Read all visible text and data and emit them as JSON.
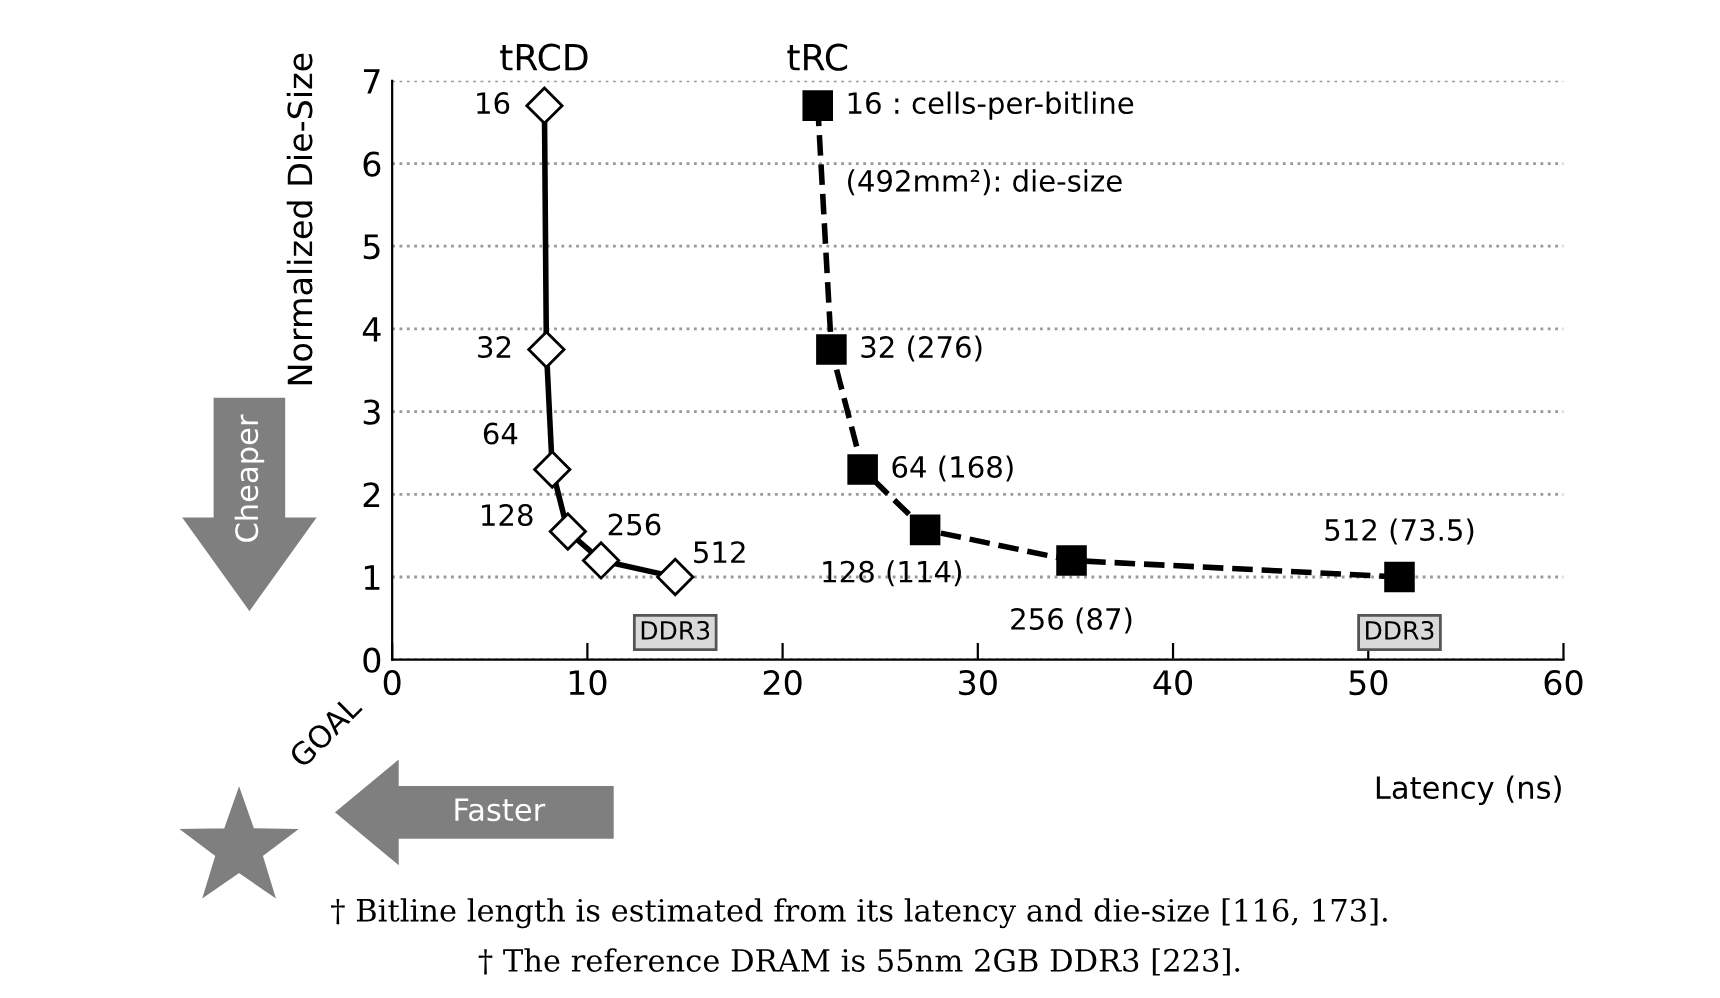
{
  "chart_data": {
    "type": "line",
    "xlabel": "Latency (ns)",
    "ylabel": "Normalized Die-Size",
    "xlim": [
      0,
      60
    ],
    "xticks": [
      0,
      10,
      20,
      30,
      40,
      50,
      60
    ],
    "ylim": [
      0,
      7
    ],
    "yticks": [
      0,
      1,
      2,
      3,
      4,
      5,
      6,
      7
    ],
    "grid": "y",
    "legend": false,
    "series": [
      {
        "name": "tRCD",
        "color": "#000000",
        "x": [
          7.8,
          7.9,
          8.2,
          9.0,
          10.7,
          14.5
        ],
        "values": [
          6.7,
          3.75,
          2.3,
          1.55,
          1.2,
          1.0
        ],
        "marker": "diamond",
        "line_style": "solid"
      },
      {
        "name": "tRC",
        "color": "#000000",
        "x": [
          21.8,
          22.5,
          24.1,
          27.3,
          34.8,
          51.6
        ],
        "values": [
          6.7,
          3.75,
          2.3,
          1.57,
          1.2,
          1.0
        ],
        "marker": "square",
        "line_style": "dashed"
      }
    ],
    "annotations": [
      {
        "text": "16",
        "x": 7.8,
        "y": 6.7
      },
      {
        "text": "32",
        "x": 7.9,
        "y": 3.75
      },
      {
        "text": "64",
        "x": 8.2,
        "y": 2.3
      },
      {
        "text": "128",
        "x": 9.0,
        "y": 1.55
      },
      {
        "text": "256",
        "x": 10.7,
        "y": 1.2
      },
      {
        "text": "512",
        "x": 14.5,
        "y": 1.0
      },
      {
        "text": "DDR3",
        "x": 14.5,
        "y": 1.0
      },
      {
        "text": "16 : cells-per-bitline",
        "x": 21.8,
        "y": 6.7
      },
      {
        "text": "(492mm²): die-size",
        "x": 21.8,
        "y": 6.7
      },
      {
        "text": "32 (276)",
        "x": 22.5,
        "y": 3.75
      },
      {
        "text": "64 (168)",
        "x": 24.1,
        "y": 2.3
      },
      {
        "text": "128 (114)",
        "x": 27.3,
        "y": 1.57
      },
      {
        "text": "256 (87)",
        "x": 34.8,
        "y": 1.2
      },
      {
        "text": "512 (73.5)",
        "x": 51.6,
        "y": 1.0
      },
      {
        "text": "DDR3",
        "x": 51.6,
        "y": 1.0
      },
      "Cheaper",
      "GOAL",
      "Faster",
      "† Bitline length is estimated from its latency and die-size [116, 173].",
      "† The reference DRAM is 55nm 2GB DDR3 [223]."
    ]
  }
}
